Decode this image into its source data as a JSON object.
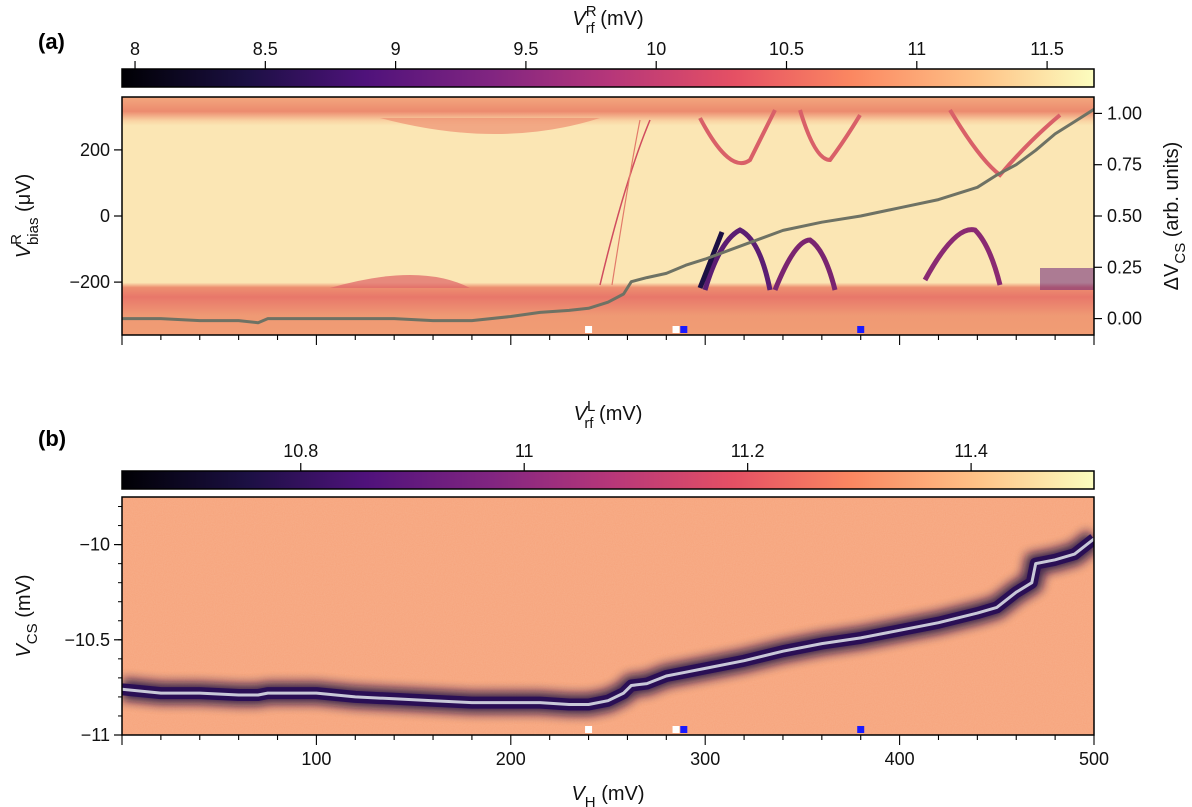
{
  "chart_data": [
    {
      "type": "heatmap",
      "panel_label": "(a)",
      "colorbar": {
        "label_base": "V",
        "label_sup": "R",
        "label_sub": "rf",
        "label_unit": "(mV)",
        "range": [
          7.95,
          11.68
        ],
        "ticks": [
          "8",
          "8.5",
          "9",
          "9.5",
          "10",
          "10.5",
          "11",
          "11.5"
        ],
        "tick_values": [
          8,
          8.5,
          9,
          9.5,
          10,
          10.5,
          11,
          11.5
        ],
        "colormap": "magma"
      },
      "xlim": [
        0,
        500
      ],
      "ylim": [
        -360,
        360
      ],
      "y_ticks": [
        "200",
        "0",
        "−200"
      ],
      "y_tick_values": [
        200,
        0,
        -200
      ],
      "ylabel_base": "V",
      "ylabel_sup": "R",
      "ylabel_sub": "bias",
      "ylabel_unit": "(μV)",
      "y2lim": [
        -0.08,
        1.08
      ],
      "y2_ticks": [
        "1.00",
        "0.75",
        "0.50",
        "0.25",
        "0.00"
      ],
      "y2_tick_values": [
        1.0,
        0.75,
        0.5,
        0.25,
        0.0
      ],
      "y2label_prefix": "ΔV",
      "y2label_sub": "CS",
      "y2label_unit": "(arb. units)",
      "series": [
        {
          "x": [
            0,
            20,
            40,
            60,
            70,
            75,
            100,
            120,
            140,
            160,
            180,
            200,
            215,
            230,
            240,
            250,
            258,
            262,
            270,
            280,
            290,
            300,
            320,
            340,
            360,
            380,
            400,
            420,
            440,
            450,
            460,
            470,
            480,
            490,
            500
          ],
          "y": [
            0.0,
            0.0,
            -0.01,
            -0.01,
            -0.02,
            0.0,
            0.0,
            0.0,
            0.0,
            -0.01,
            -0.01,
            0.01,
            0.03,
            0.04,
            0.05,
            0.08,
            0.12,
            0.18,
            0.2,
            0.22,
            0.26,
            0.29,
            0.36,
            0.43,
            0.47,
            0.5,
            0.54,
            0.58,
            0.64,
            0.7,
            0.75,
            0.82,
            0.9,
            0.96,
            1.02
          ],
          "color": "#6e7264"
        }
      ],
      "markers": [
        {
          "x": 240,
          "color": "#ffffff"
        },
        {
          "x": 285,
          "color": "#ffffff"
        },
        {
          "x": 289,
          "color": "#1a1aff"
        },
        {
          "x": 380,
          "color": "#1a1aff"
        }
      ]
    },
    {
      "type": "heatmap",
      "panel_label": "(b)",
      "colorbar": {
        "label_base": "V",
        "label_sup": "L",
        "label_sub": "rf",
        "label_unit": "(mV)",
        "range": [
          10.64,
          11.51
        ],
        "ticks": [
          "10.8",
          "11",
          "11.2",
          "11.4"
        ],
        "tick_values": [
          10.8,
          11.0,
          11.2,
          11.4
        ],
        "colormap": "magma"
      },
      "xlim": [
        0,
        500
      ],
      "x_ticks": [
        "100",
        "200",
        "300",
        "400",
        "500"
      ],
      "x_tick_values": [
        100,
        200,
        300,
        400,
        500
      ],
      "xlabel_base": "V",
      "xlabel_sub": "H",
      "xlabel_unit": "(mV)",
      "ylim": [
        -11.0,
        -9.75
      ],
      "y_ticks": [
        "−10",
        "−10.5",
        "−11"
      ],
      "y_tick_values": [
        -10.0,
        -10.5,
        -11.0
      ],
      "ylabel_base": "V",
      "ylabel_sub": "CS",
      "ylabel_unit": "(mV)",
      "series": [
        {
          "x": [
            0,
            20,
            40,
            60,
            70,
            75,
            90,
            100,
            120,
            140,
            160,
            180,
            200,
            215,
            230,
            240,
            250,
            258,
            262,
            270,
            280,
            290,
            300,
            320,
            340,
            360,
            380,
            400,
            420,
            440,
            450,
            460,
            468,
            470,
            480,
            490,
            500
          ],
          "y": [
            -10.76,
            -10.78,
            -10.78,
            -10.79,
            -10.79,
            -10.78,
            -10.78,
            -10.78,
            -10.8,
            -10.81,
            -10.82,
            -10.83,
            -10.83,
            -10.83,
            -10.84,
            -10.84,
            -10.82,
            -10.78,
            -10.74,
            -10.73,
            -10.69,
            -10.67,
            -10.65,
            -10.61,
            -10.56,
            -10.52,
            -10.49,
            -10.45,
            -10.41,
            -10.36,
            -10.33,
            -10.25,
            -10.2,
            -10.1,
            -10.08,
            -10.05,
            -9.97
          ],
          "color": "#c8c8d8"
        }
      ],
      "markers": [
        {
          "x": 240,
          "color": "#ffffff"
        },
        {
          "x": 285,
          "color": "#ffffff"
        },
        {
          "x": 289,
          "color": "#1a1aff"
        },
        {
          "x": 380,
          "color": "#1a1aff"
        }
      ]
    }
  ]
}
